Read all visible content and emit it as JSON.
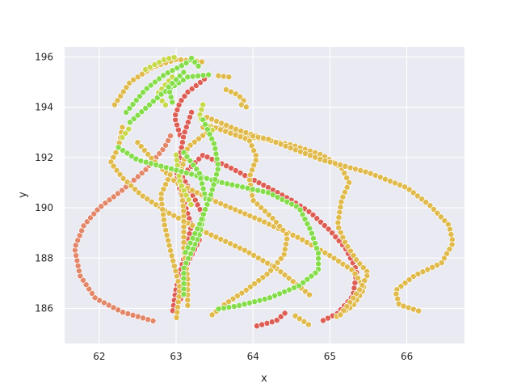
{
  "chart_data": {
    "type": "scatter",
    "title": "",
    "xlabel": "x",
    "ylabel": "y",
    "xlim": [
      61.55,
      66.75
    ],
    "ylim": [
      184.6,
      196.4
    ],
    "x_ticks": [
      62,
      63,
      64,
      65,
      66
    ],
    "y_ticks": [
      186,
      188,
      190,
      192,
      194,
      196
    ],
    "grid": true,
    "legend": "none",
    "background": "#eaeaf2",
    "series": [
      {
        "color": "#e2876a",
        "paths": [
          [
            [
              62.7,
              185.5
            ],
            [
              62.3,
              185.85
            ],
            [
              61.95,
              186.4
            ],
            [
              61.75,
              187.3
            ],
            [
              61.68,
              188.4
            ],
            [
              61.8,
              189.3
            ],
            [
              62.0,
              190.0
            ],
            [
              62.3,
              190.7
            ],
            [
              62.6,
              191.5
            ],
            [
              62.85,
              192.4
            ],
            [
              62.95,
              193.0
            ]
          ]
        ]
      },
      {
        "color": "#dd5e55",
        "paths": [
          [
            [
              63.05,
              192.9
            ],
            [
              62.98,
              193.6
            ],
            [
              63.05,
              194.2
            ],
            [
              63.15,
              194.6
            ],
            [
              63.3,
              194.95
            ],
            [
              63.4,
              195.2
            ]
          ],
          [
            [
              63.2,
              193.8
            ],
            [
              63.1,
              192.9
            ],
            [
              63.0,
              191.2
            ],
            [
              63.2,
              189.3
            ],
            [
              63.1,
              188.0
            ],
            [
              63.0,
              186.8
            ],
            [
              62.95,
              185.8
            ]
          ],
          [
            [
              63.15,
              191.5
            ],
            [
              63.35,
              192.1
            ],
            [
              63.7,
              191.6
            ],
            [
              64.2,
              190.8
            ],
            [
              64.5,
              190.3
            ],
            [
              64.75,
              189.8
            ],
            [
              65.0,
              189.1
            ],
            [
              65.2,
              188.4
            ],
            [
              65.35,
              187.5
            ],
            [
              65.3,
              186.5
            ],
            [
              65.1,
              185.8
            ],
            [
              64.9,
              185.5
            ]
          ],
          [
            [
              63.05,
              191.4
            ],
            [
              63.2,
              190.6
            ],
            [
              63.35,
              189.7
            ],
            [
              63.3,
              188.7
            ],
            [
              63.1,
              187.5
            ],
            [
              63.05,
              186.2
            ]
          ],
          [
            [
              64.05,
              185.3
            ],
            [
              64.3,
              185.5
            ],
            [
              64.45,
              185.9
            ]
          ]
        ]
      },
      {
        "color": "#e0ba4c",
        "paths": [
          [
            [
              62.2,
              194.1
            ],
            [
              62.4,
              195.0
            ],
            [
              62.7,
              195.6
            ],
            [
              63.0,
              195.9
            ],
            [
              63.2,
              195.85
            ],
            [
              63.35,
              195.8
            ]
          ],
          [
            [
              62.3,
              193.2
            ],
            [
              62.25,
              192.4
            ],
            [
              62.15,
              191.8
            ],
            [
              62.3,
              191.2
            ],
            [
              62.55,
              190.5
            ],
            [
              62.9,
              189.8
            ],
            [
              63.4,
              189.0
            ],
            [
              63.9,
              188.3
            ],
            [
              64.3,
              187.6
            ],
            [
              64.55,
              187.0
            ],
            [
              64.75,
              186.5
            ]
          ],
          [
            [
              62.5,
              192.6
            ],
            [
              62.7,
              191.9
            ],
            [
              63.0,
              191.0
            ],
            [
              63.55,
              190.2
            ],
            [
              64.1,
              189.5
            ],
            [
              64.6,
              188.8
            ],
            [
              65.0,
              188.1
            ],
            [
              65.3,
              187.5
            ],
            [
              65.45,
              186.8
            ],
            [
              65.3,
              186.1
            ],
            [
              65.05,
              185.6
            ]
          ],
          [
            [
              63.35,
              193.2
            ],
            [
              63.65,
              193.15
            ],
            [
              64.0,
              192.8
            ],
            [
              64.5,
              192.5
            ],
            [
              64.9,
              192.1
            ],
            [
              65.15,
              191.6
            ],
            [
              65.25,
              191.0
            ],
            [
              65.15,
              190.3
            ],
            [
              65.1,
              189.3
            ],
            [
              65.2,
              188.6
            ],
            [
              65.35,
              187.9
            ],
            [
              65.5,
              187.4
            ],
            [
              65.4,
              186.8
            ],
            [
              65.25,
              186.2
            ],
            [
              65.1,
              185.6
            ]
          ],
          [
            [
              63.4,
              193.6
            ],
            [
              63.8,
              193.1
            ],
            [
              64.3,
              192.6
            ],
            [
              64.9,
              191.9
            ],
            [
              65.5,
              191.4
            ],
            [
              66.0,
              190.8
            ],
            [
              66.3,
              190.1
            ],
            [
              66.55,
              189.3
            ],
            [
              66.6,
              188.6
            ],
            [
              66.45,
              187.8
            ],
            [
              66.1,
              187.3
            ],
            [
              65.85,
              186.7
            ],
            [
              65.9,
              186.15
            ],
            [
              66.2,
              185.85
            ]
          ],
          [
            [
              63.45,
              193.25
            ],
            [
              63.95,
              192.7
            ],
            [
              64.05,
              192.0
            ],
            [
              63.95,
              191.2
            ],
            [
              64.0,
              190.3
            ],
            [
              64.25,
              189.6
            ],
            [
              64.45,
              188.9
            ],
            [
              64.4,
              188.1
            ],
            [
              64.2,
              187.4
            ],
            [
              63.9,
              186.7
            ],
            [
              63.65,
              186.2
            ],
            [
              63.45,
              185.7
            ]
          ],
          [
            [
              62.95,
              191.5
            ],
            [
              62.8,
              190.5
            ],
            [
              62.85,
              189.3
            ],
            [
              62.95,
              188.0
            ],
            [
              63.05,
              186.8
            ],
            [
              63.0,
              185.5
            ]
          ],
          [
            [
              63.4,
              193.0
            ],
            [
              63.15,
              192.4
            ],
            [
              63.05,
              191.3
            ],
            [
              63.1,
              189.8
            ],
            [
              63.1,
              188.4
            ],
            [
              63.15,
              187.2
            ],
            [
              63.15,
              186.0
            ]
          ],
          [
            [
              63.55,
              195.25
            ],
            [
              63.7,
              195.2
            ]
          ],
          [
            [
              63.65,
              194.7
            ],
            [
              63.8,
              194.5
            ],
            [
              63.9,
              194.2
            ]
          ],
          [
            [
              63.85,
              194.1
            ],
            [
              63.95,
              193.95
            ]
          ],
          [
            [
              64.0,
              192.85
            ],
            [
              64.25,
              192.7
            ]
          ],
          [
            [
              64.55,
              185.7
            ],
            [
              64.75,
              185.3
            ]
          ]
        ]
      },
      {
        "color": "#c7d94a",
        "paths": [
          [
            [
              62.6,
              195.5
            ],
            [
              62.85,
              195.9
            ],
            [
              63.0,
              196.0
            ]
          ],
          [
            [
              62.95,
              195.2
            ],
            [
              62.75,
              194.5
            ],
            [
              62.9,
              193.95
            ]
          ],
          [
            [
              63.35,
              194.1
            ],
            [
              63.3,
              193.6
            ],
            [
              63.5,
              193.0
            ]
          ],
          [
            [
              62.3,
              192.8
            ],
            [
              62.4,
              193.2
            ]
          ],
          [
            [
              63.0,
              192.1
            ],
            [
              63.05,
              191.0
            ],
            [
              63.2,
              190.1
            ]
          ]
        ]
      },
      {
        "color": "#86dd4b",
        "paths": [
          [
            [
              62.35,
              193.8
            ],
            [
              62.6,
              194.7
            ],
            [
              62.85,
              195.3
            ],
            [
              63.1,
              195.7
            ],
            [
              63.2,
              195.9
            ]
          ],
          [
            [
              62.25,
              192.4
            ],
            [
              62.5,
              191.9
            ],
            [
              63.0,
              191.5
            ],
            [
              63.6,
              191.0
            ],
            [
              64.2,
              190.6
            ],
            [
              64.6,
              190.0
            ],
            [
              64.75,
              189.1
            ],
            [
              64.85,
              188.2
            ],
            [
              64.85,
              187.5
            ],
            [
              64.6,
              186.9
            ],
            [
              64.2,
              186.4
            ],
            [
              63.8,
              186.1
            ],
            [
              63.5,
              185.95
            ]
          ],
          [
            [
              62.4,
              193.4
            ],
            [
              62.8,
              194.5
            ],
            [
              63.15,
              195.2
            ],
            [
              63.45,
              195.3
            ]
          ],
          [
            [
              62.95,
              194.2
            ],
            [
              62.9,
              194.8
            ],
            [
              63.1,
              195.4
            ]
          ],
          [
            [
              63.1,
              192.2
            ],
            [
              63.3,
              191.4
            ],
            [
              63.4,
              190.2
            ],
            [
              63.3,
              188.9
            ],
            [
              63.1,
              187.6
            ],
            [
              63.1,
              186.5
            ]
          ],
          [
            [
              63.35,
              193.5
            ],
            [
              63.5,
              192.5
            ],
            [
              63.55,
              191.6
            ],
            [
              63.45,
              190.5
            ],
            [
              63.3,
              189.3
            ],
            [
              63.1,
              188.1
            ]
          ],
          [
            [
              63.2,
              195.95
            ],
            [
              63.3,
              195.6
            ]
          ]
        ]
      }
    ]
  }
}
